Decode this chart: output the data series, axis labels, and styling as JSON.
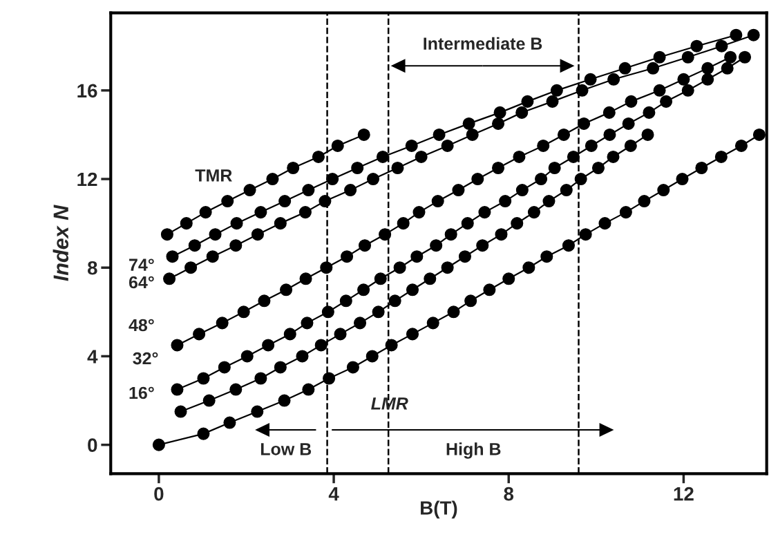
{
  "chart_data": {
    "type": "line",
    "xlabel": "B(T)",
    "ylabel": "Index N",
    "xlim": [
      -1.1,
      13.9
    ],
    "ylim": [
      -1.3,
      19.5
    ],
    "xticks": [
      0,
      4,
      8,
      12
    ],
    "yticks": [
      0,
      4,
      8,
      12,
      16
    ],
    "grid": false,
    "legend": false,
    "marker": "circle",
    "line_style": "solid",
    "series": [
      {
        "color": "#000000",
        "x": [
          0.19,
          0.63,
          1.07,
          1.57,
          2.08,
          2.6,
          3.07,
          3.65,
          4.09,
          4.69
        ],
        "values": [
          9.5,
          10,
          10.5,
          11,
          11.5,
          12,
          12.5,
          13,
          13.5,
          14
        ]
      },
      {
        "color": "#000000",
        "x": [
          0.31,
          0.82,
          1.29,
          1.78,
          2.33,
          2.88,
          3.42,
          3.97,
          4.54,
          5.12,
          5.78,
          6.41,
          7.09,
          7.8,
          8.43,
          9.1,
          9.87,
          10.66,
          11.45,
          12.3,
          13.2
        ],
        "values": [
          8.5,
          9,
          9.5,
          10,
          10.5,
          11,
          11.5,
          12,
          12.5,
          13,
          13.5,
          14,
          14.5,
          15,
          15.5,
          16,
          16.5,
          17,
          17.5,
          18,
          18.5
        ]
      },
      {
        "color": "#000000",
        "x": [
          0.24,
          0.73,
          1.23,
          1.76,
          2.26,
          2.78,
          3.35,
          3.8,
          4.38,
          4.9,
          5.46,
          6.0,
          6.6,
          7.17,
          7.76,
          8.3,
          9.0,
          9.68,
          10.4,
          11.3,
          12.1,
          12.87,
          13.6
        ],
        "values": [
          7.5,
          8,
          8.5,
          9,
          9.5,
          10,
          10.5,
          11,
          11.5,
          12,
          12.5,
          13,
          13.5,
          14,
          14.5,
          15,
          15.5,
          16,
          16.5,
          17,
          17.5,
          18,
          18.5
        ]
      },
      {
        "color": "#000000",
        "x": [
          0.42,
          0.92,
          1.45,
          1.94,
          2.41,
          2.91,
          3.36,
          3.83,
          4.3,
          4.71,
          5.17,
          5.59,
          5.95,
          6.38,
          6.85,
          7.29,
          7.76,
          8.24,
          8.79,
          9.26,
          9.72,
          10.3,
          10.8,
          11.45,
          12.0,
          12.55,
          13.07
        ],
        "values": [
          4.5,
          5,
          5.5,
          6,
          6.5,
          7,
          7.5,
          8,
          8.5,
          9,
          9.5,
          10,
          10.5,
          11,
          11.5,
          12,
          12.5,
          13,
          13.5,
          14,
          14.5,
          15,
          15.5,
          16,
          16.5,
          17,
          17.5
        ]
      },
      {
        "color": "#000000",
        "x": [
          0.42,
          1.02,
          1.5,
          2.02,
          2.5,
          3.0,
          3.39,
          3.87,
          4.28,
          4.68,
          5.07,
          5.51,
          5.9,
          6.34,
          6.68,
          7.06,
          7.45,
          7.92,
          8.31,
          8.74,
          9.05,
          9.48,
          9.89,
          10.31,
          10.74,
          11.21,
          11.6,
          12.1,
          12.55,
          13.0,
          13.4
        ],
        "values": [
          2.5,
          3,
          3.5,
          4,
          4.5,
          5,
          5.5,
          6,
          6.5,
          7,
          7.5,
          8,
          8.5,
          9,
          9.5,
          10,
          10.5,
          11,
          11.5,
          12,
          12.5,
          13,
          13.5,
          14,
          14.5,
          15,
          15.5,
          16,
          16.5,
          17,
          17.5
        ]
      },
      {
        "color": "#000000",
        "x": [
          0.5,
          1.15,
          1.76,
          2.33,
          2.78,
          3.28,
          3.71,
          4.15,
          4.6,
          5.02,
          5.4,
          5.8,
          6.2,
          6.6,
          7.0,
          7.4,
          7.83,
          8.19,
          8.58,
          8.92,
          9.32,
          9.65,
          10.05,
          10.39,
          10.79,
          11.18
        ],
        "values": [
          1.5,
          2,
          2.5,
          3,
          3.5,
          4,
          4.5,
          5,
          5.5,
          6,
          6.5,
          7,
          7.5,
          8,
          8.5,
          9,
          9.5,
          10,
          10.5,
          11,
          11.5,
          12,
          12.5,
          13,
          13.5,
          14
        ]
      },
      {
        "color": "#000000",
        "x": [
          0,
          1.02,
          1.62,
          2.25,
          2.87,
          3.42,
          3.89,
          4.44,
          4.88,
          5.32,
          5.8,
          6.27,
          6.74,
          7.13,
          7.56,
          8.0,
          8.46,
          8.87,
          9.37,
          9.76,
          10.2,
          10.68,
          11.1,
          11.54,
          11.97,
          12.41,
          12.86,
          13.32,
          13.73
        ],
        "values": [
          0,
          0.5,
          1,
          1.5,
          2,
          2.5,
          3,
          3.5,
          4,
          4.5,
          5,
          5.5,
          6,
          6.5,
          7,
          7.5,
          8,
          8.5,
          9,
          9.5,
          10,
          10.5,
          11,
          11.5,
          12,
          12.5,
          13,
          13.5,
          14
        ]
      }
    ],
    "ref_lines": [
      {
        "axis": "x",
        "value": 3.85,
        "color": "#000000",
        "line_style": "dashed"
      },
      {
        "axis": "x",
        "value": 5.25,
        "color": "#000000",
        "line_style": "dashed"
      },
      {
        "axis": "x",
        "value": 9.6,
        "color": "#000000",
        "line_style": "dashed"
      }
    ],
    "annotations": [
      "TMR",
      "LMR",
      "74°",
      "64°",
      "48°",
      "32°",
      "16°",
      "Low B",
      "High B",
      "Intermediate B"
    ]
  }
}
